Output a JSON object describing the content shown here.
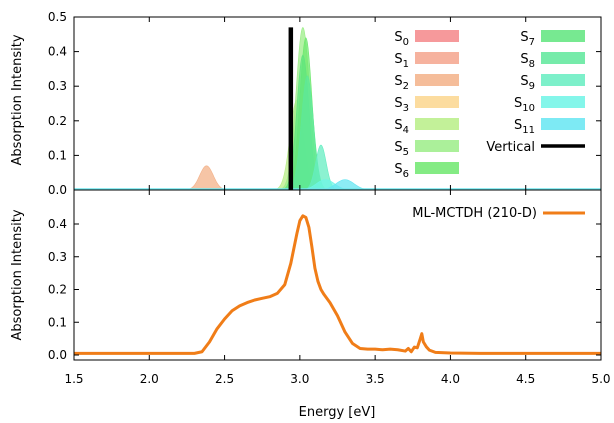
{
  "chart_data": [
    {
      "type": "area",
      "panel": "top",
      "ylabel": "Absorption Intensity",
      "xlim": [
        1.5,
        5.0
      ],
      "ylim": [
        0,
        0.5
      ],
      "yticks": [
        "0.0",
        "0.1",
        "0.2",
        "0.3",
        "0.4",
        "0.5"
      ],
      "grid": false,
      "legend_placement": "top-right",
      "series": [
        {
          "name": "S0",
          "color": "#f4878a",
          "peaks": []
        },
        {
          "name": "S1",
          "color": "#f5a58d",
          "peaks": []
        },
        {
          "name": "S2",
          "color": "#f3b188",
          "peaks": [
            {
              "x": 2.38,
              "y": 0.07,
              "w": 0.045
            }
          ]
        },
        {
          "name": "S3",
          "color": "#fbd68e",
          "peaks": [
            {
              "x": 3.0,
              "y": 0.02,
              "w": 0.05
            }
          ]
        },
        {
          "name": "S4",
          "color": "#b8ee87",
          "peaks": [
            {
              "x": 2.98,
              "y": 0.26,
              "w": 0.045
            }
          ]
        },
        {
          "name": "S5",
          "color": "#9ced88",
          "peaks": [
            {
              "x": 3.02,
              "y": 0.47,
              "w": 0.045
            }
          ]
        },
        {
          "name": "S6",
          "color": "#6ee86e",
          "peaks": [
            {
              "x": 3.04,
              "y": 0.44,
              "w": 0.04
            }
          ]
        },
        {
          "name": "S7",
          "color": "#5fe57e",
          "peaks": [
            {
              "x": 3.02,
              "y": 0.39,
              "w": 0.04
            }
          ]
        },
        {
          "name": "S8",
          "color": "#5ee89b",
          "peaks": [
            {
              "x": 3.05,
              "y": 0.33,
              "w": 0.04
            }
          ]
        },
        {
          "name": "S9",
          "color": "#66edc1",
          "peaks": [
            {
              "x": 3.14,
              "y": 0.13,
              "w": 0.035
            }
          ]
        },
        {
          "name": "S10",
          "color": "#6ff5e6",
          "peaks": [
            {
              "x": 3.17,
              "y": 0.03,
              "w": 0.06
            }
          ]
        },
        {
          "name": "S11",
          "color": "#66e6f2",
          "peaks": [
            {
              "x": 3.3,
              "y": 0.03,
              "w": 0.06
            }
          ]
        }
      ],
      "vertical": {
        "name": "Vertical",
        "x": 2.94,
        "y": 0.47,
        "color": "#000000"
      }
    },
    {
      "type": "line",
      "panel": "bottom",
      "xlabel": "Energy [eV]",
      "ylabel": "Absorption Intensity",
      "xlim": [
        1.5,
        5.0
      ],
      "ylim": [
        0,
        0.45
      ],
      "xticks": [
        "1.5",
        "2.0",
        "2.5",
        "3.0",
        "3.5",
        "4.0",
        "4.5",
        "5.0"
      ],
      "yticks": [
        "0.0",
        "0.1",
        "0.2",
        "0.3",
        "0.4"
      ],
      "grid": false,
      "legend_placement": "top-right",
      "series": [
        {
          "name": "ML-MCTDH (210-D)",
          "color": "#f07d18",
          "x": [
            1.5,
            2.0,
            2.2,
            2.25,
            2.3,
            2.35,
            2.4,
            2.45,
            2.5,
            2.55,
            2.6,
            2.65,
            2.7,
            2.75,
            2.8,
            2.85,
            2.9,
            2.94,
            2.98,
            3.0,
            3.02,
            3.04,
            3.06,
            3.08,
            3.1,
            3.12,
            3.14,
            3.16,
            3.2,
            3.25,
            3.3,
            3.35,
            3.4,
            3.45,
            3.5,
            3.55,
            3.6,
            3.65,
            3.7,
            3.72,
            3.74,
            3.76,
            3.78,
            3.8,
            3.81,
            3.82,
            3.84,
            3.86,
            3.9,
            4.0,
            4.2,
            4.5,
            5.0
          ],
          "values": [
            0.005,
            0.005,
            0.005,
            0.005,
            0.005,
            0.01,
            0.04,
            0.08,
            0.11,
            0.135,
            0.15,
            0.16,
            0.168,
            0.173,
            0.178,
            0.188,
            0.215,
            0.28,
            0.37,
            0.41,
            0.425,
            0.42,
            0.39,
            0.33,
            0.265,
            0.225,
            0.2,
            0.185,
            0.16,
            0.12,
            0.07,
            0.035,
            0.02,
            0.018,
            0.018,
            0.016,
            0.018,
            0.016,
            0.012,
            0.02,
            0.01,
            0.024,
            0.022,
            0.05,
            0.065,
            0.04,
            0.025,
            0.015,
            0.008,
            0.006,
            0.005,
            0.005,
            0.005
          ]
        }
      ]
    }
  ]
}
